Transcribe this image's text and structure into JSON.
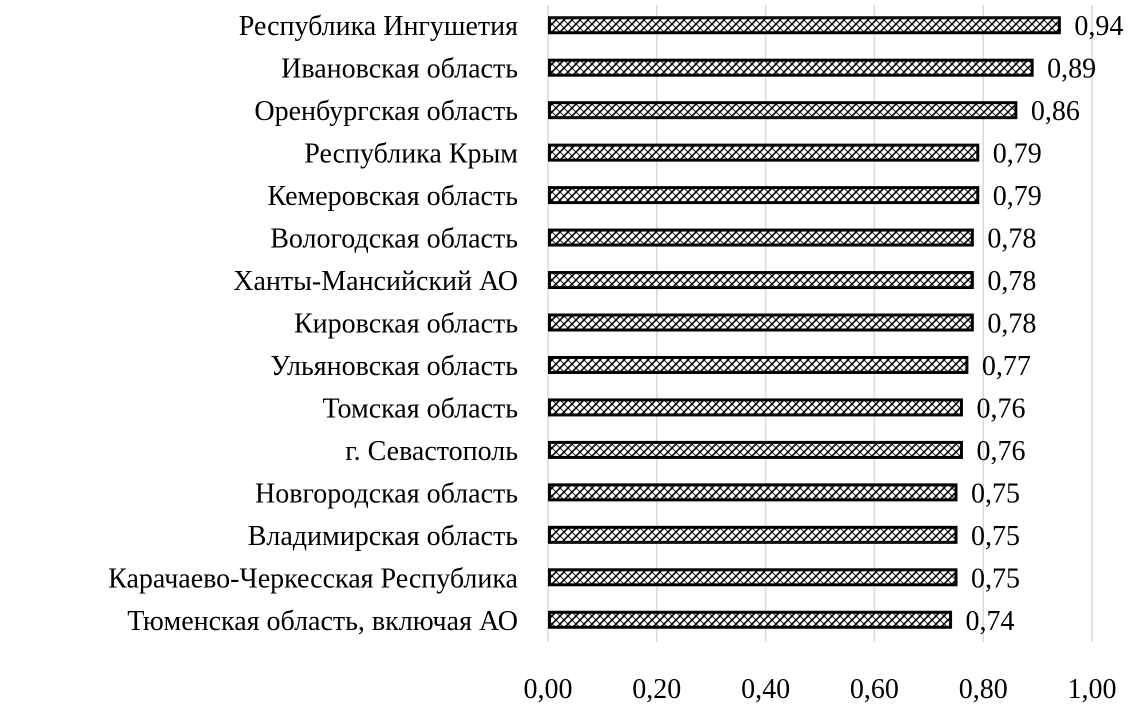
{
  "chart_data": {
    "type": "bar",
    "orientation": "horizontal",
    "categories": [
      "Республика Ингушетия",
      "Ивановская область",
      "Оренбургская область",
      "Республика Крым",
      "Кемеровская область",
      "Вологодская область",
      "Ханты-Мансийский АО",
      "Кировская область",
      "Ульяновская область",
      "Томская область",
      "г. Севастополь",
      "Новгородская область",
      "Владимирская область",
      "Карачаево-Черкесская Республика",
      "Тюменская область, включая АО"
    ],
    "values": [
      0.94,
      0.89,
      0.86,
      0.79,
      0.79,
      0.78,
      0.78,
      0.78,
      0.77,
      0.76,
      0.76,
      0.75,
      0.75,
      0.75,
      0.74
    ],
    "value_labels": [
      "0,94",
      "0,89",
      "0,86",
      "0,79",
      "0,79",
      "0,78",
      "0,78",
      "0,78",
      "0,77",
      "0,76",
      "0,76",
      "0,75",
      "0,75",
      "0,75",
      "0,74"
    ],
    "xlim": [
      0,
      1
    ],
    "x_ticks": [
      "0,00",
      "0,20",
      "0,40",
      "0,60",
      "0,80",
      "1,00"
    ],
    "grid": "vertical",
    "bar_fill": "crosshatch pattern",
    "bar_border_color": "#000000",
    "grid_color": "#d9d9d9",
    "title": "",
    "xlabel": "",
    "ylabel": ""
  }
}
